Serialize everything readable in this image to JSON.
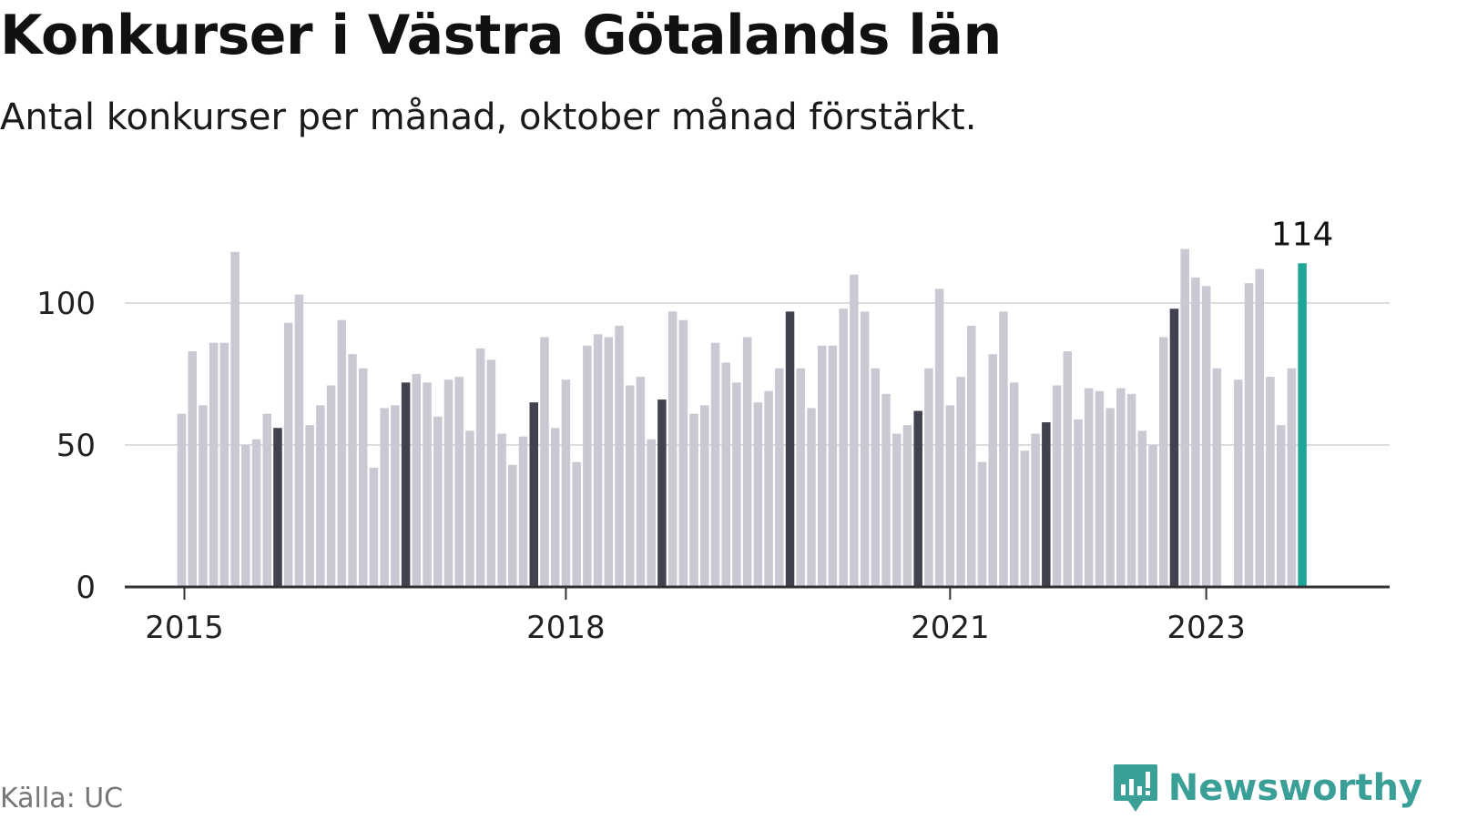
{
  "header": {
    "title": "Konkurser i Västra Götalands län",
    "subtitle": "Antal konkurser per månad, oktober månad förstärkt."
  },
  "footer": {
    "source": "Källa: UC",
    "brand": "Newsworthy",
    "brand_icon": "chart-bubble-icon"
  },
  "colors": {
    "bar_default": "#c9c8d3",
    "bar_october": "#404250",
    "bar_latest": "#1fa597",
    "gridline": "#dddddd",
    "axis": "#333333",
    "text": "#111111",
    "brand": "#3a9f97"
  },
  "chart_data": {
    "type": "bar",
    "title": "Konkurser i Västra Götalands län",
    "subtitle": "Antal konkurser per månad, oktober månad förstärkt.",
    "xlabel": "",
    "ylabel": "",
    "ylim": [
      0,
      125
    ],
    "yticks": [
      0,
      50,
      100
    ],
    "xtick_labels": [
      {
        "label": "2015",
        "index": 0
      },
      {
        "label": "2018",
        "index": 36
      },
      {
        "label": "2021",
        "index": 72
      },
      {
        "label": "2023",
        "index": 96
      }
    ],
    "start": "2015-01",
    "highlight_month": "oktober",
    "latest_label": "114",
    "grid": true,
    "values": [
      61,
      83,
      64,
      86,
      86,
      118,
      50,
      52,
      61,
      56,
      93,
      103,
      57,
      64,
      71,
      94,
      82,
      77,
      42,
      63,
      64,
      72,
      75,
      72,
      60,
      73,
      74,
      55,
      84,
      80,
      54,
      43,
      53,
      65,
      88,
      56,
      73,
      44,
      85,
      89,
      88,
      92,
      71,
      74,
      52,
      66,
      97,
      94,
      61,
      64,
      86,
      79,
      72,
      88,
      65,
      69,
      77,
      97,
      77,
      63,
      85,
      85,
      98,
      110,
      97,
      77,
      68,
      54,
      57,
      62,
      77,
      105,
      64,
      74,
      92,
      44,
      82,
      97,
      72,
      48,
      54,
      58,
      71,
      83,
      59,
      70,
      69,
      63,
      70,
      68,
      55,
      50,
      88,
      98,
      119,
      109,
      106,
      77,
      null,
      73,
      107,
      112,
      74,
      57,
      77,
      114
    ]
  }
}
